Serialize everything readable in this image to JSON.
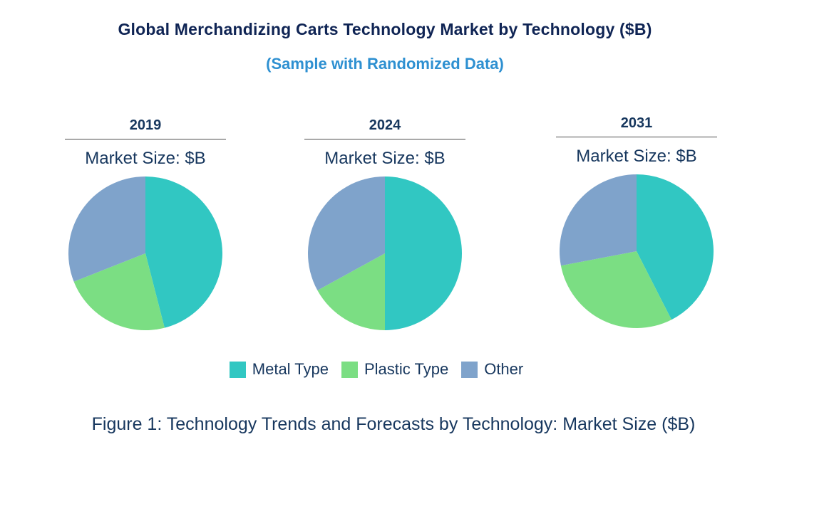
{
  "title": "Global Merchandizing Carts Technology Market by Technology ($B)",
  "subtitle": "(Sample with Randomized Data)",
  "caption": "Figure 1: Technology Trends and Forecasts by Technology: Market Size ($B)",
  "colors": {
    "title_navy": "#0F2454",
    "text_navy": "#17375E",
    "subtitle_blue": "#2E90D1",
    "underline_gray": "#4d4d4d",
    "metal_teal": "#31C7C2",
    "plastic_green": "#7BDE83",
    "other_blue": "#7FA3CB"
  },
  "legend": {
    "items": [
      {
        "label": "Metal Type",
        "color": "#31C7C2"
      },
      {
        "label": "Plastic Type",
        "color": "#7BDE83"
      },
      {
        "label": "Other",
        "color": "#7FA3CB"
      }
    ]
  },
  "chart_data": [
    {
      "type": "pie",
      "year": "2019",
      "label": "Market Size: $B",
      "legend_position": "bottom-shared",
      "values_note": "shares estimated from slice angles, % of pie",
      "slices": [
        {
          "name": "Metal Type",
          "value": 46
        },
        {
          "name": "Plastic Type",
          "value": 23
        },
        {
          "name": "Other",
          "value": 31
        }
      ]
    },
    {
      "type": "pie",
      "year": "2024",
      "label": "Market Size: $B",
      "legend_position": "bottom-shared",
      "values_note": "shares estimated from slice angles, % of pie",
      "slices": [
        {
          "name": "Metal Type",
          "value": 50
        },
        {
          "name": "Plastic Type",
          "value": 17
        },
        {
          "name": "Other",
          "value": 33
        }
      ]
    },
    {
      "type": "pie",
      "year": "2031",
      "label": "Market Size: $B",
      "legend_position": "bottom-shared",
      "values_note": "shares estimated from slice angles, % of pie",
      "slices": [
        {
          "name": "Metal Type",
          "value": 42.5
        },
        {
          "name": "Plastic Type",
          "value": 29.5
        },
        {
          "name": "Other",
          "value": 28
        }
      ]
    }
  ]
}
